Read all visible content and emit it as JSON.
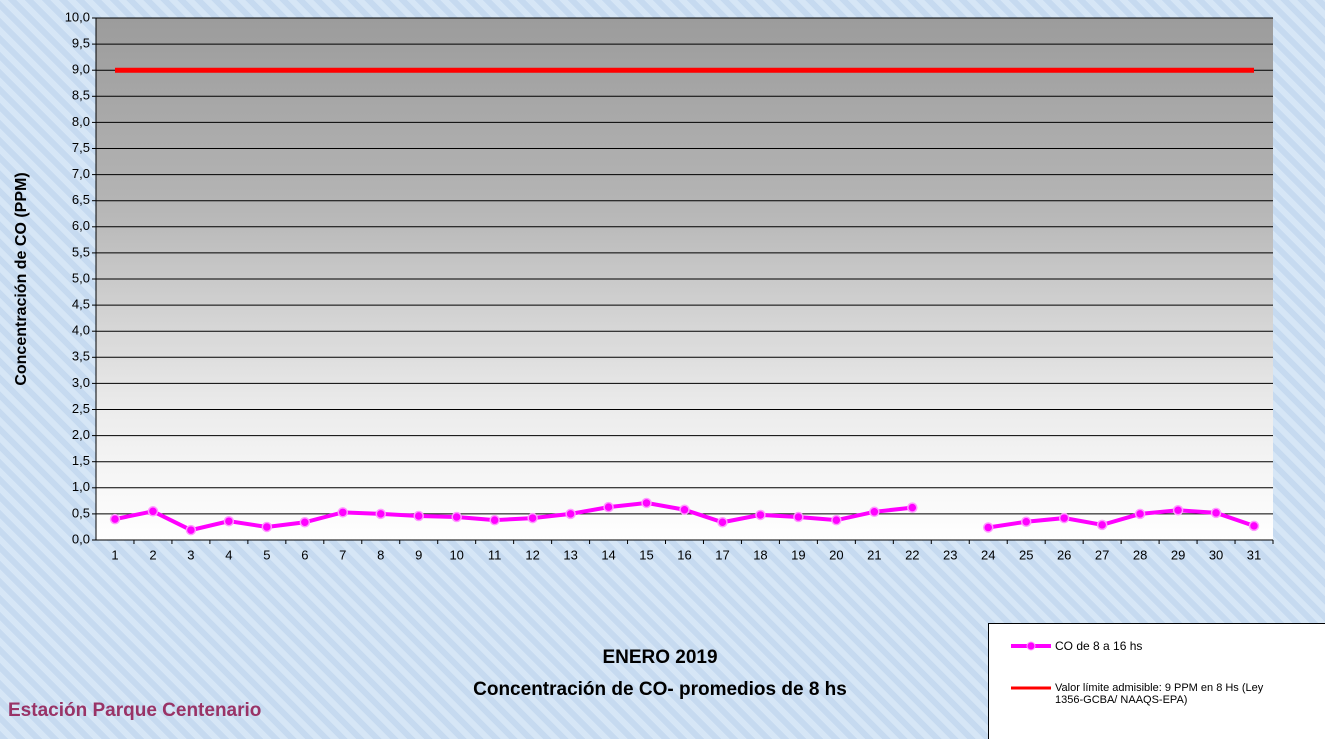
{
  "chart_data": {
    "type": "line",
    "title": "ENERO 2019",
    "subtitle": "Concentración de CO- promedios de 8 hs",
    "annotation": "Estación Parque Centenario",
    "y_label": "Concentración de CO (PPM)",
    "categories": [
      "1",
      "2",
      "3",
      "4",
      "5",
      "6",
      "7",
      "8",
      "9",
      "10",
      "11",
      "12",
      "13",
      "14",
      "15",
      "16",
      "17",
      "18",
      "19",
      "20",
      "21",
      "22",
      "23",
      "24",
      "25",
      "26",
      "27",
      "28",
      "29",
      "30",
      "31"
    ],
    "series": [
      {
        "name": "CO de 8 a 16 hs",
        "color": "#ff00ff",
        "marker": true,
        "values": [
          0.4,
          0.55,
          0.19,
          0.36,
          0.25,
          0.34,
          0.53,
          0.5,
          0.46,
          0.44,
          0.38,
          0.42,
          0.5,
          0.63,
          0.71,
          0.58,
          0.34,
          0.48,
          0.44,
          0.38,
          0.54,
          0.62,
          null,
          0.24,
          0.35,
          0.42,
          0.29,
          0.5,
          0.57,
          0.52,
          0.27
        ]
      },
      {
        "name": "Valor límite admisible: 9 PPM en 8 Hs (Ley 1356-GCBA/ NAAQS-EPA)",
        "color": "#ff0000",
        "marker": false,
        "values": [
          9,
          9,
          9,
          9,
          9,
          9,
          9,
          9,
          9,
          9,
          9,
          9,
          9,
          9,
          9,
          9,
          9,
          9,
          9,
          9,
          9,
          9,
          9,
          9,
          9,
          9,
          9,
          9,
          9,
          9,
          9
        ]
      }
    ],
    "ylim": [
      0,
      10
    ],
    "yticks": [
      {
        "value": 0,
        "label": "0,0"
      },
      {
        "value": 0.5,
        "label": "0,5"
      },
      {
        "value": 1,
        "label": "1,0"
      },
      {
        "value": 1.5,
        "label": "1,5"
      },
      {
        "value": 2,
        "label": "2,0"
      },
      {
        "value": 2.5,
        "label": "2,5"
      },
      {
        "value": 3,
        "label": "3,0"
      },
      {
        "value": 3.5,
        "label": "3,5"
      },
      {
        "value": 4,
        "label": "4,0"
      },
      {
        "value": 4.5,
        "label": "4,5"
      },
      {
        "value": 5,
        "label": "5,0"
      },
      {
        "value": 5.5,
        "label": "5,5"
      },
      {
        "value": 6,
        "label": "6,0"
      },
      {
        "value": 6.5,
        "label": "6,5"
      },
      {
        "value": 7,
        "label": "7,0"
      },
      {
        "value": 7.5,
        "label": "7,5"
      },
      {
        "value": 8,
        "label": "8,0"
      },
      {
        "value": 8.5,
        "label": "8,5"
      },
      {
        "value": 9,
        "label": "9,0"
      },
      {
        "value": 9.5,
        "label": "9,5"
      },
      {
        "value": 10,
        "label": "10,0"
      }
    ],
    "grid": true,
    "legend": "bottom-right"
  }
}
